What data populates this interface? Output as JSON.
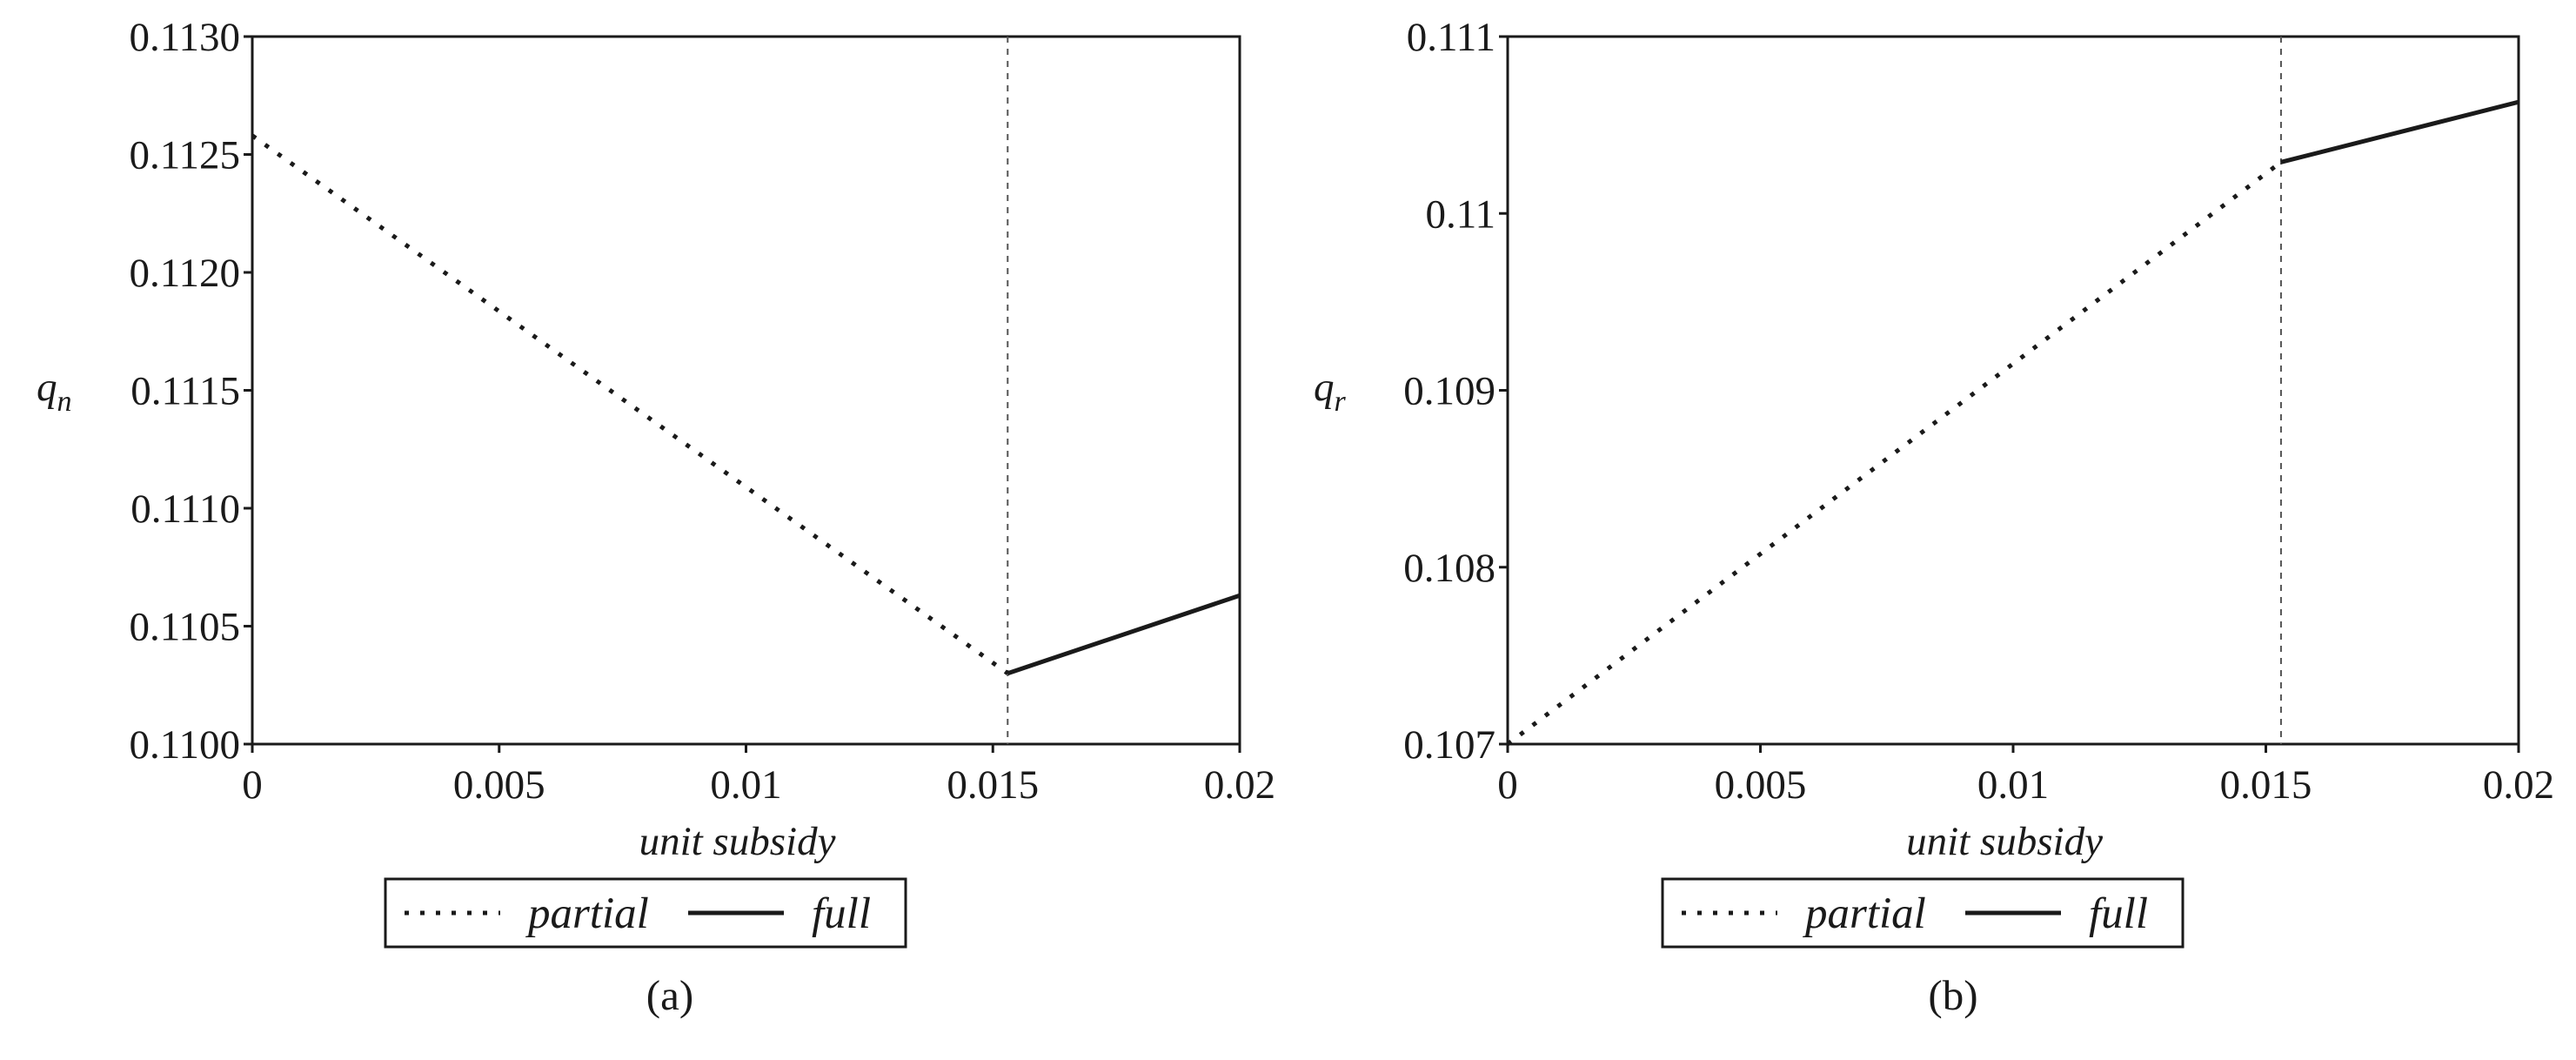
{
  "chart_data": [
    {
      "type": "line",
      "caption": "(a)",
      "xlabel": "unit subsidy",
      "ylabel": "q",
      "ylabel_sub": "n",
      "xlim": [
        0,
        0.02
      ],
      "ylim": [
        0.11,
        0.113
      ],
      "x_ticks": [
        0,
        0.005,
        0.01,
        0.015,
        0.02
      ],
      "x_tick_labels": [
        "0",
        "0.005",
        "0.01",
        "0.015",
        "0.02"
      ],
      "y_ticks": [
        0.11,
        0.1105,
        0.111,
        0.1115,
        0.112,
        0.1125,
        0.113
      ],
      "y_tick_labels": [
        "0.1100",
        "0.1105",
        "0.1110",
        "0.1115",
        "0.1120",
        "0.1125",
        "0.1130"
      ],
      "threshold_x": 0.0153,
      "series": [
        {
          "name": "partial",
          "style": "dotted",
          "x": [
            0,
            0.0153
          ],
          "y": [
            0.11258,
            0.1103
          ]
        },
        {
          "name": "full",
          "style": "solid",
          "x": [
            0.0153,
            0.02
          ],
          "y": [
            0.1103,
            0.11063
          ]
        }
      ],
      "legend": [
        "partial",
        "full"
      ],
      "legend_placement": "bottom",
      "grid": false
    },
    {
      "type": "line",
      "caption": "(b)",
      "xlabel": "unit subsidy",
      "ylabel": "q",
      "ylabel_sub": "r",
      "xlim": [
        0,
        0.02
      ],
      "ylim": [
        0.107,
        0.111
      ],
      "x_ticks": [
        0,
        0.005,
        0.01,
        0.015,
        0.02
      ],
      "x_tick_labels": [
        "0",
        "0.005",
        "0.01",
        "0.015",
        "0.02"
      ],
      "y_ticks": [
        0.107,
        0.108,
        0.109,
        0.11,
        0.111
      ],
      "y_tick_labels": [
        "0.107",
        "0.108",
        "0.109",
        "0.11",
        "0.111"
      ],
      "threshold_x": 0.0153,
      "series": [
        {
          "name": "partial",
          "style": "dotted",
          "x": [
            0,
            0.0153
          ],
          "y": [
            0.107,
            0.11029
          ]
        },
        {
          "name": "full",
          "style": "solid",
          "x": [
            0.0153,
            0.02
          ],
          "y": [
            0.11029,
            0.11063
          ]
        }
      ],
      "legend": [
        "partial",
        "full"
      ],
      "legend_placement": "bottom",
      "grid": false
    }
  ]
}
